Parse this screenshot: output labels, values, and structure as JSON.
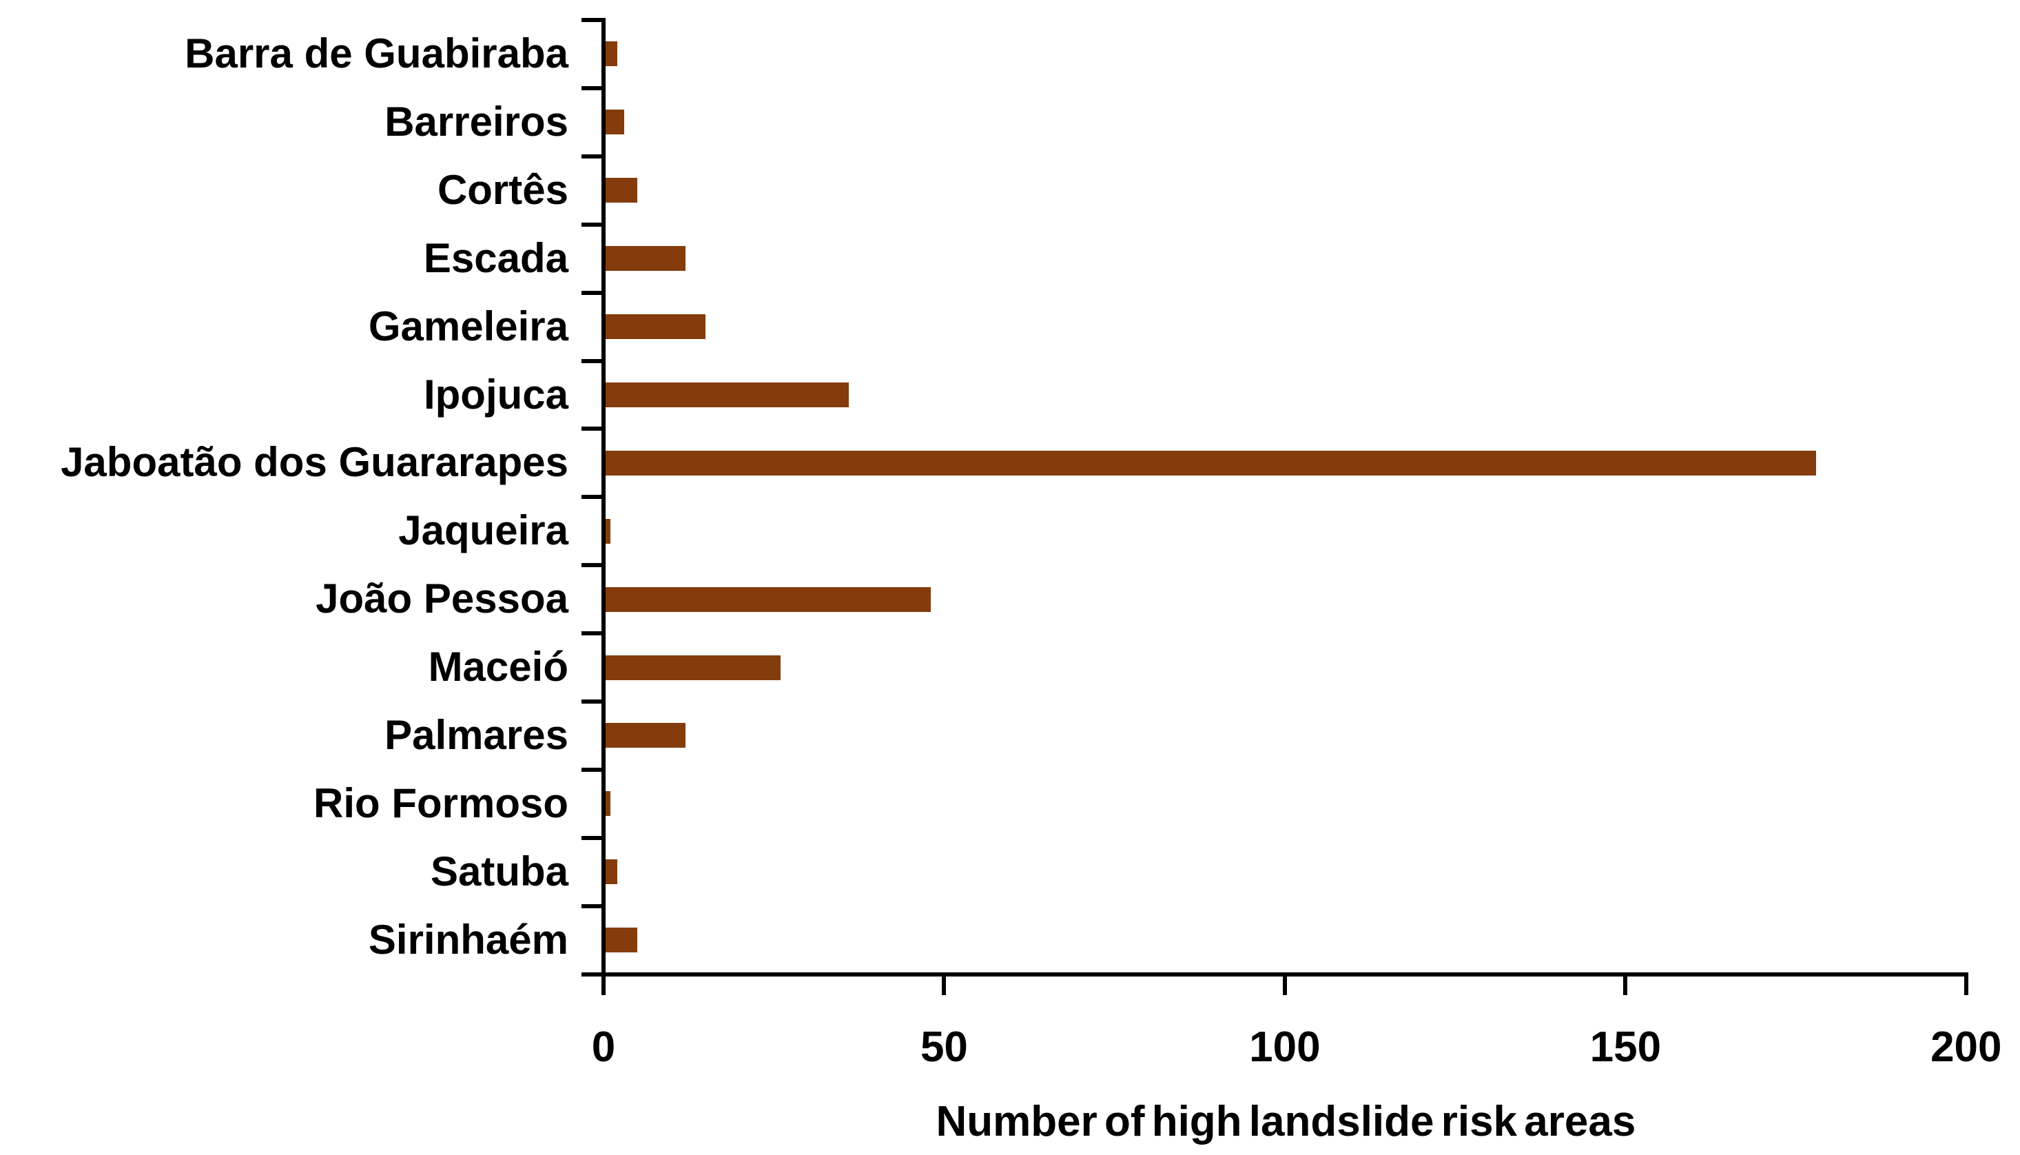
{
  "chart_data": {
    "type": "bar",
    "orientation": "horizontal",
    "title": "",
    "xlabel": "Number of high landslide risk areas",
    "ylabel": "",
    "categories": [
      "Barra de Guabiraba",
      "Barreiros",
      "Cortês",
      "Escada",
      "Gameleira",
      "Ipojuca",
      "Jaboatão dos Guararapes",
      "Jaqueira",
      "João Pessoa",
      "Maceió",
      "Palmares",
      "Rio Formoso",
      "Satuba",
      "Sirinhaém"
    ],
    "values": [
      2,
      3,
      5,
      12,
      15,
      36,
      178,
      1,
      48,
      26,
      12,
      1,
      2,
      5
    ],
    "xlim": [
      0,
      200
    ],
    "xticks": [
      0,
      50,
      100,
      150,
      200
    ],
    "grid": false,
    "legend": false,
    "bar_color": "#843C0C",
    "axis_color": "#000000",
    "text_color": "#000000",
    "background_color": "#FFFFFF"
  }
}
